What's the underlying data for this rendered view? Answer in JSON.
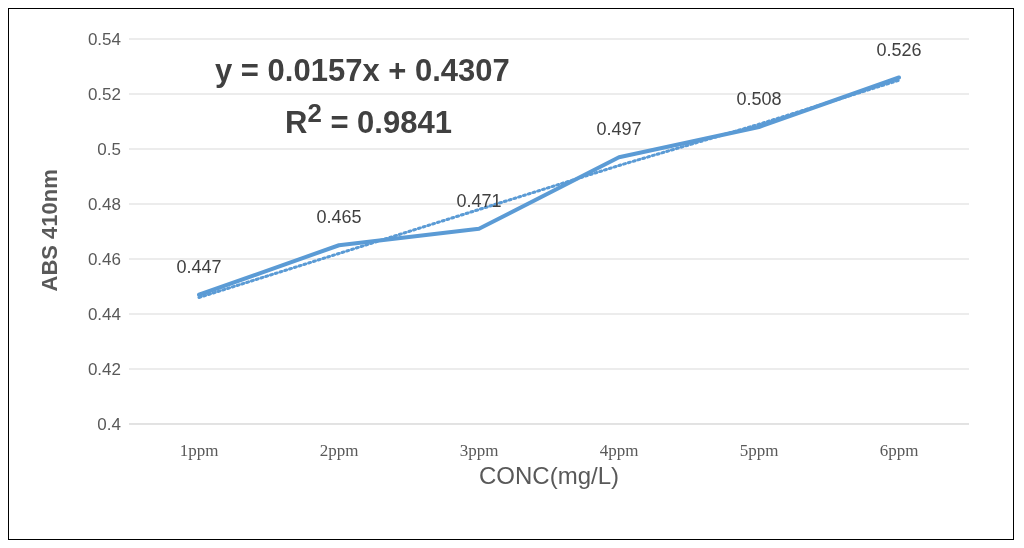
{
  "chart_data": {
    "type": "line",
    "xlabel": "CONC(mg/L)",
    "ylabel": "ABS 410nm",
    "categories": [
      "1ppm",
      "2ppm",
      "3ppm",
      "4ppm",
      "5ppm",
      "6ppm"
    ],
    "series": [
      {
        "color": "#5b9bd5",
        "values": [
          0.447,
          0.465,
          0.471,
          0.497,
          0.508,
          0.526
        ],
        "value_labels": [
          "0.447",
          "0.465",
          "0.471",
          "0.497",
          "0.508",
          "0.526"
        ],
        "line_style": "solid"
      },
      {
        "color": "#5b9bd5",
        "values": [
          0.446,
          0.462,
          0.478,
          0.494,
          0.509,
          0.525
        ],
        "line_style": "dotted"
      }
    ],
    "annotations": [
      "y = 0.0157x + 0.4307",
      "R$^{2}$ = 0.9841"
    ],
    "ylim": [
      0.4,
      0.54
    ],
    "yticks": [
      0.4,
      0.42,
      0.44,
      0.46,
      0.48,
      0.5,
      0.52,
      0.54
    ],
    "grid": "y",
    "marker": "none"
  }
}
